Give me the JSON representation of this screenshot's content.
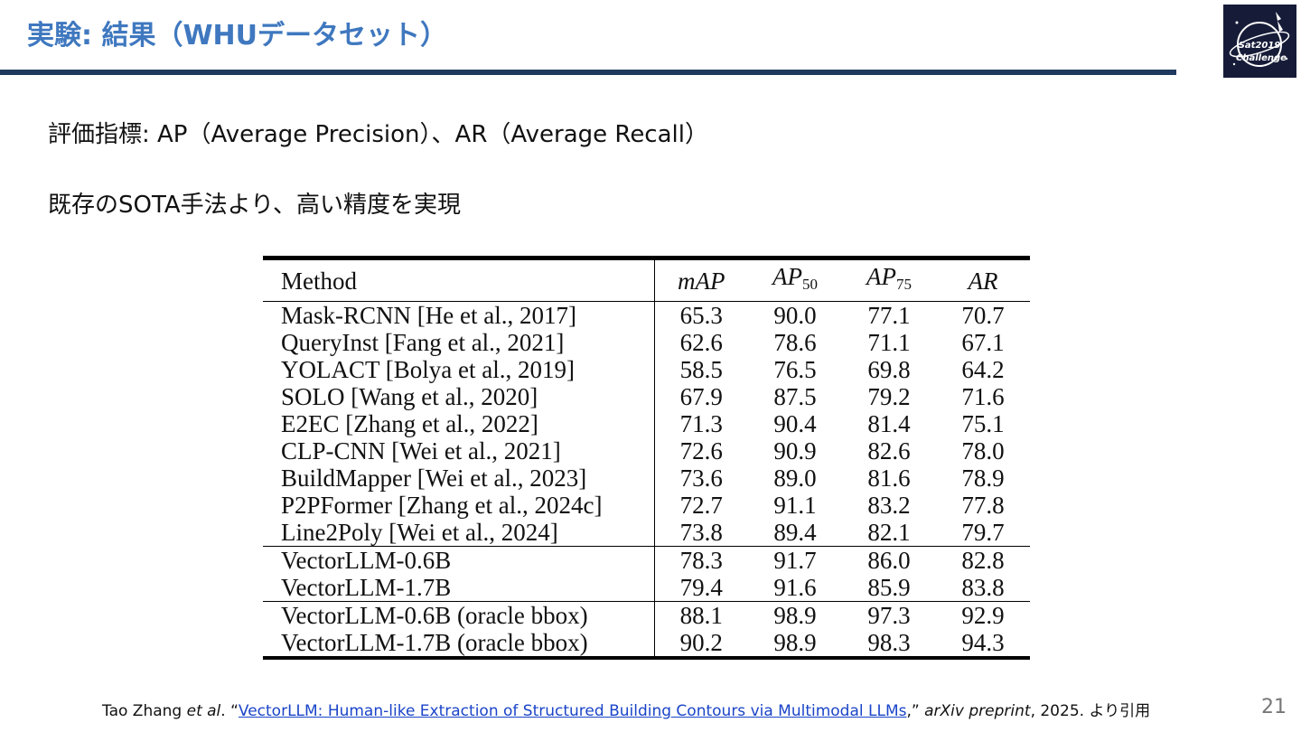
{
  "slide": {
    "title": "実験: 結果（WHUデータセット）",
    "logo_text": "Sat2019 Challenge",
    "bullets": [
      "評価指標: AP（Average Precision）、AR（Average Recall）",
      "既存のSOTA手法より、高い精度を実現"
    ],
    "page_number": "21"
  },
  "table": {
    "headers": {
      "method": "Method",
      "map": {
        "main": "mAP"
      },
      "ap50": {
        "main": "AP",
        "sub": "50"
      },
      "ap75": {
        "main": "AP",
        "sub": "75"
      },
      "ar": {
        "main": "AR"
      }
    },
    "group1": [
      [
        "Mask-RCNN [He et al., 2017]",
        "65.3",
        "90.0",
        "77.1",
        "70.7"
      ],
      [
        "QueryInst [Fang et al., 2021]",
        "62.6",
        "78.6",
        "71.1",
        "67.1"
      ],
      [
        "YOLACT [Bolya et al., 2019]",
        "58.5",
        "76.5",
        "69.8",
        "64.2"
      ],
      [
        "SOLO [Wang et al., 2020]",
        "67.9",
        "87.5",
        "79.2",
        "71.6"
      ],
      [
        "E2EC [Zhang et al., 2022]",
        "71.3",
        "90.4",
        "81.4",
        "75.1"
      ],
      [
        "CLP-CNN [Wei et al., 2021]",
        "72.6",
        "90.9",
        "82.6",
        "78.0"
      ],
      [
        "BuildMapper [Wei et al., 2023]",
        "73.6",
        "89.0",
        "81.6",
        "78.9"
      ],
      [
        "P2PFormer [Zhang et al., 2024c]",
        "72.7",
        "91.1",
        "83.2",
        "77.8"
      ],
      [
        "Line2Poly [Wei et al., 2024]",
        "73.8",
        "89.4",
        "82.1",
        "79.7"
      ]
    ],
    "group2": [
      [
        "VectorLLM-0.6B",
        "78.3",
        "91.7",
        "86.0",
        "82.8"
      ],
      [
        "VectorLLM-1.7B",
        "79.4",
        "91.6",
        "85.9",
        "83.8"
      ]
    ],
    "group3": [
      [
        "VectorLLM-0.6B (oracle bbox)",
        "88.1",
        "98.9",
        "97.3",
        "92.9"
      ],
      [
        "VectorLLM-1.7B (oracle bbox)",
        "90.2",
        "98.9",
        "98.3",
        "94.3"
      ]
    ]
  },
  "citation": {
    "authors": "Tao Zhang ",
    "etal": "et al",
    "sep1": ". “",
    "link_text": "VectorLLM: Human-like Extraction of Structured Building Contours via Multimodal LLMs",
    "sep2": ",” ",
    "venue": "arXiv preprint",
    "tail": ", 2025. より引用"
  },
  "colors": {
    "title": "#3f78bf",
    "title_rule": "#1f3a5f",
    "logo_bg": "#161c38",
    "link": "#1a44c8",
    "page_number": "#777777"
  }
}
